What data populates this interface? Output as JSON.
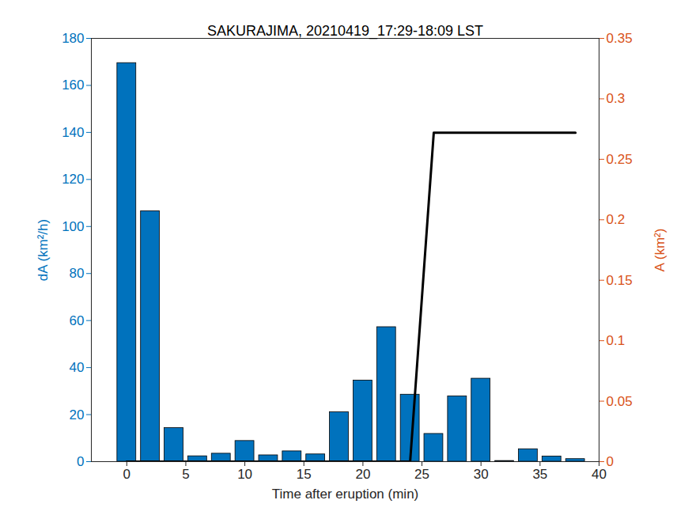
{
  "chart_data": {
    "type": "bar",
    "title": "SAKURAJIMA, 20210419_17:29-18:09 LST",
    "x_label": "Time after eruption (min)",
    "y_label": "dA (km²/h)",
    "y2_label": "A (km²)",
    "x": [
      0,
      2,
      4,
      6,
      8,
      10,
      12,
      14,
      16,
      18,
      20,
      22,
      24,
      26,
      28,
      30,
      32,
      34,
      36,
      38
    ],
    "series": [
      {
        "type": "bar",
        "color": "#0072bd",
        "values": [
          169.5,
          106.5,
          14.3,
          2.3,
          3.4,
          8.8,
          2.7,
          4.4,
          3.1,
          21,
          34.5,
          57.2,
          28.5,
          11.8,
          27.8,
          35.3,
          0.3,
          5.3,
          2.2,
          1.1
        ]
      },
      {
        "type": "line",
        "color": "#000000",
        "axis": "y2",
        "values": [
          0,
          0,
          0,
          0,
          0,
          0,
          0,
          0,
          0,
          0,
          0,
          0,
          0,
          0.272,
          0.272,
          0.272,
          0.272,
          0.272,
          0.272,
          0.272
        ]
      }
    ],
    "xlim": [
      -3,
      40
    ],
    "xticks": [
      0,
      5,
      10,
      15,
      20,
      25,
      30,
      35,
      40
    ],
    "ylim": [
      0,
      180
    ],
    "yticks": [
      0,
      20,
      40,
      60,
      80,
      100,
      120,
      140,
      160,
      180
    ],
    "y2lim": [
      0,
      0.35
    ],
    "y2ticks": [
      0,
      0.05,
      0.1,
      0.15,
      0.2,
      0.25,
      0.3,
      0.35
    ],
    "grid": false
  }
}
